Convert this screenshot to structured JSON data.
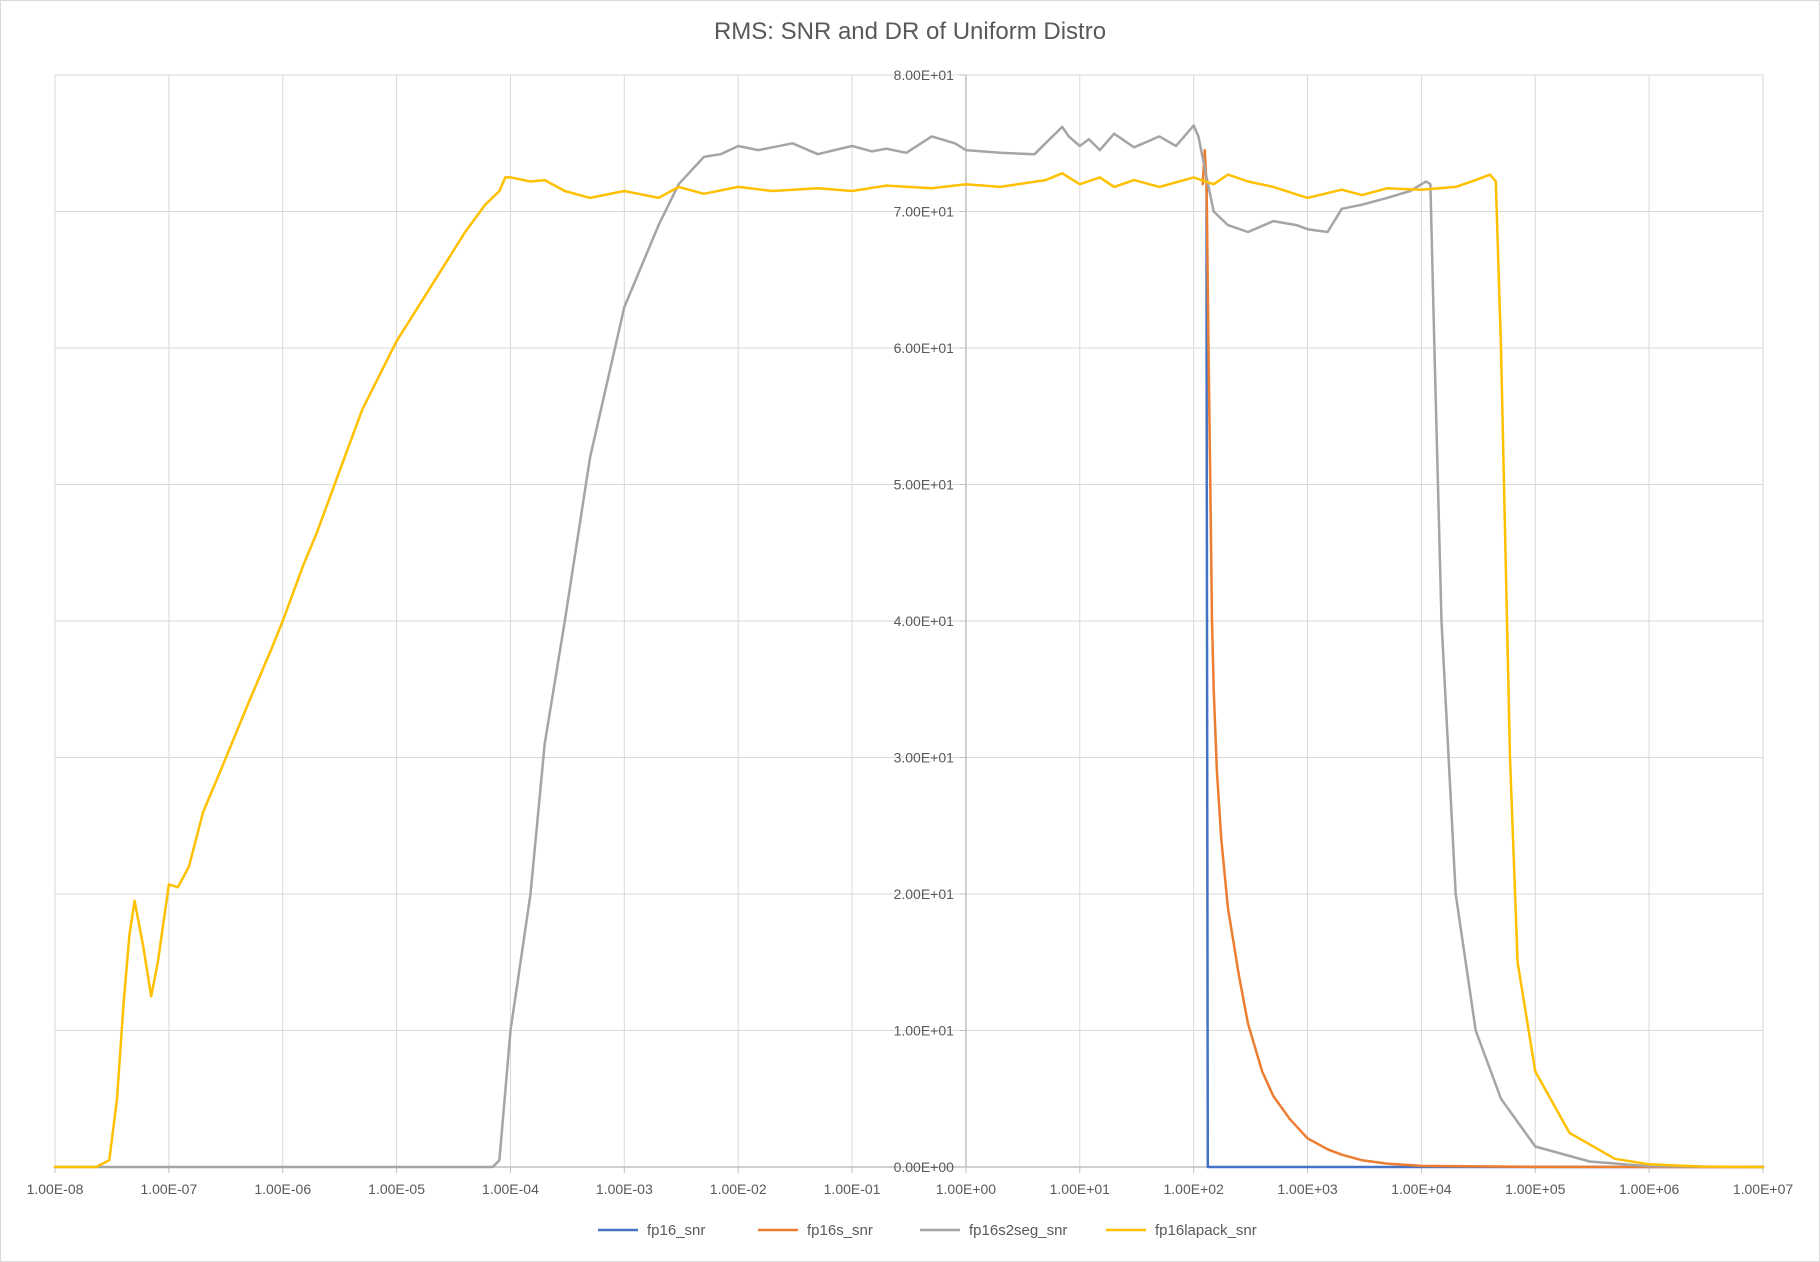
{
  "chart_data": {
    "type": "line",
    "title": "RMS: SNR and DR of Uniform Distro",
    "xlabel": "",
    "ylabel": "",
    "xscale": "log",
    "xlim": [
      1e-08,
      10000000.0
    ],
    "ylim": [
      0,
      80
    ],
    "grid": true,
    "legend_position": "bottom",
    "x_tick_labels": [
      "1.00E-08",
      "1.00E-07",
      "1.00E-06",
      "1.00E-05",
      "1.00E-04",
      "1.00E-03",
      "1.00E-02",
      "1.00E-01",
      "1.00E+00",
      "1.00E+01",
      "1.00E+02",
      "1.00E+03",
      "1.00E+04",
      "1.00E+05",
      "1.00E+06",
      "1.00E+07"
    ],
    "y_tick_labels": [
      "0.00E+00",
      "1.00E+01",
      "2.00E+01",
      "3.00E+01",
      "4.00E+01",
      "5.00E+01",
      "6.00E+01",
      "7.00E+01",
      "8.00E+01"
    ],
    "series": [
      {
        "name": "fp16_snr",
        "color": "#4472c4",
        "x": [
          130,
          130,
          133,
          140,
          200,
          1000,
          10000000.0
        ],
        "y": [
          72,
          60,
          0,
          0,
          0,
          0,
          0
        ]
      },
      {
        "name": "fp16s_snr",
        "color": "#ed7d31",
        "x": [
          120,
          125,
          130,
          135,
          140,
          145,
          150,
          160,
          175,
          200,
          250,
          300,
          400,
          500,
          700,
          1000,
          1500,
          2000,
          3000,
          5000,
          10000,
          100000,
          10000000.0
        ],
        "y": [
          72,
          74.5,
          72,
          60,
          50,
          40,
          35,
          29,
          24,
          19,
          14,
          10.5,
          7,
          5.2,
          3.5,
          2.1,
          1.3,
          0.9,
          0.5,
          0.25,
          0.08,
          0.01,
          0
        ]
      },
      {
        "name": "fp16s2seg_snr",
        "color": "#a5a5a5",
        "x": [
          1e-08,
          6e-05,
          7e-05,
          8e-05,
          0.0001,
          0.00015,
          0.0002,
          0.0003,
          0.0005,
          0.001,
          0.002,
          0.003,
          0.005,
          0.007,
          0.01,
          0.015,
          0.02,
          0.03,
          0.05,
          0.07,
          0.1,
          0.15,
          0.2,
          0.3,
          0.5,
          0.8,
          1,
          2,
          4,
          5,
          7,
          8,
          10,
          12,
          15,
          20,
          30,
          50,
          70,
          100,
          110,
          130,
          150,
          200,
          300,
          500,
          800,
          1000,
          1500,
          2000,
          3000,
          5000,
          8000,
          10000,
          11000,
          12000,
          13000,
          15000,
          20000,
          30000,
          50000,
          100000,
          300000,
          1000000.0,
          10000000.0
        ],
        "y": [
          0,
          0,
          0,
          0.5,
          10,
          20,
          31,
          40,
          52,
          63,
          69,
          72,
          74,
          74.2,
          74.8,
          74.5,
          74.7,
          75,
          74.2,
          74.5,
          74.8,
          74.4,
          74.6,
          74.3,
          75.5,
          75,
          74.5,
          74.3,
          74.2,
          75,
          76.2,
          75.5,
          74.8,
          75.3,
          74.5,
          75.7,
          74.7,
          75.5,
          74.8,
          76.3,
          75.5,
          72.5,
          70,
          69,
          68.5,
          69.3,
          69,
          68.7,
          68.5,
          70.2,
          70.5,
          71,
          71.5,
          72,
          72.2,
          72,
          60,
          40,
          20,
          10,
          5,
          1.5,
          0.4,
          0.05,
          0
        ]
      },
      {
        "name": "fp16lapack_snr",
        "color": "#ffc000",
        "x": [
          1e-08,
          2.3e-08,
          3e-08,
          3.5e-08,
          4e-08,
          4.5e-08,
          5e-08,
          6e-08,
          7e-08,
          8e-08,
          1e-07,
          1.2e-07,
          1.5e-07,
          2e-07,
          3e-07,
          5e-07,
          8e-07,
          1e-06,
          1.5e-06,
          2e-06,
          3e-06,
          5e-06,
          1e-05,
          2e-05,
          4e-05,
          6e-05,
          8e-05,
          9e-05,
          0.0001,
          0.00015,
          0.0002,
          0.0003,
          0.0005,
          0.001,
          0.002,
          0.003,
          0.005,
          0.01,
          0.02,
          0.05,
          0.1,
          0.2,
          0.5,
          1,
          2,
          5,
          7,
          10,
          15,
          20,
          30,
          50,
          100,
          150,
          200,
          300,
          500,
          1000,
          2000,
          3000,
          5000,
          10000,
          20000,
          30000,
          40000,
          45000,
          50000,
          60000,
          70000,
          100000,
          200000,
          500000,
          1000000.0,
          3000000.0,
          10000000.0
        ],
        "y": [
          0,
          0,
          0.5,
          5,
          12,
          17,
          19.5,
          16,
          12.5,
          15,
          20.7,
          20.5,
          22,
          26,
          29.5,
          34,
          38,
          40,
          44,
          46.5,
          50.5,
          55.5,
          60.5,
          64.5,
          68.5,
          70.5,
          71.5,
          72.5,
          72.5,
          72.2,
          72.3,
          71.5,
          71,
          71.5,
          71,
          71.8,
          71.3,
          71.8,
          71.5,
          71.7,
          71.5,
          71.9,
          71.7,
          72,
          71.8,
          72.3,
          72.8,
          72,
          72.5,
          71.8,
          72.3,
          71.8,
          72.5,
          72,
          72.7,
          72.2,
          71.8,
          71,
          71.6,
          71.2,
          71.7,
          71.6,
          71.8,
          72.3,
          72.7,
          72.2,
          60,
          30,
          15,
          7,
          2.5,
          0.6,
          0.2,
          0.03,
          0
        ]
      }
    ]
  }
}
